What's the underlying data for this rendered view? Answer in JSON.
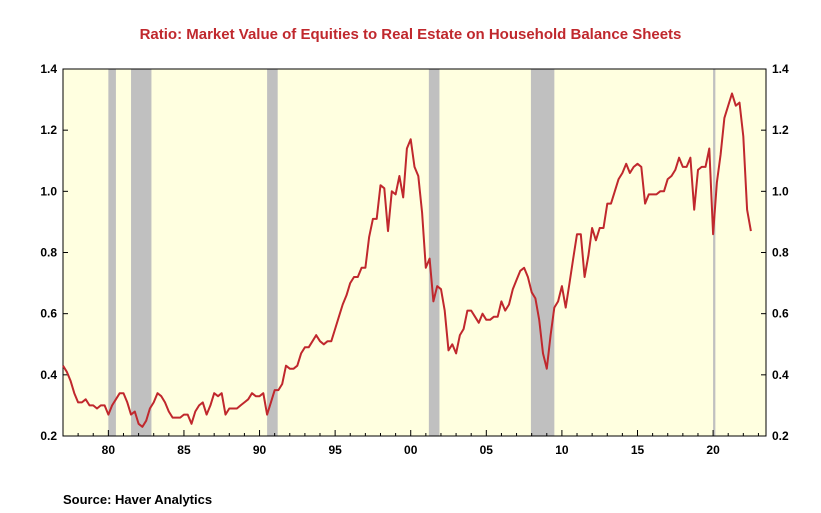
{
  "chart_data": {
    "type": "line",
    "title": "Ratio: Market Value of Equities to Real Estate on Household Balance Sheets",
    "source": "Source:  Haver Analytics",
    "xlabel": "",
    "ylabel": "",
    "xlim": [
      1977.0,
      2023.5
    ],
    "ylim": [
      0.2,
      1.4
    ],
    "y_ticks": [
      0.2,
      0.4,
      0.6,
      0.8,
      1.0,
      1.2,
      1.4
    ],
    "y_tick_labels": [
      "0.2",
      "0.4",
      "0.6",
      "0.8",
      "1.0",
      "1.2",
      "1.4"
    ],
    "x_ticks": [
      1980,
      1985,
      1990,
      1995,
      2000,
      2005,
      2010,
      2015,
      2020
    ],
    "x_tick_labels": [
      "80",
      "85",
      "90",
      "95",
      "00",
      "05",
      "10",
      "15",
      "20"
    ],
    "grid": false,
    "plot_background": "#ffffe0",
    "line_color": "#c0282d",
    "recession_color": "#c0c0c0",
    "recessions": [
      [
        1980.0,
        1980.5
      ],
      [
        1981.5,
        1982.85
      ],
      [
        1990.5,
        1991.2
      ],
      [
        2001.2,
        2001.9
      ],
      [
        2007.95,
        2009.5
      ],
      [
        2020.0,
        2020.15
      ]
    ],
    "series": [
      {
        "values": [
          [
            1977.0,
            0.43
          ],
          [
            1977.25,
            0.41
          ],
          [
            1977.5,
            0.38
          ],
          [
            1977.75,
            0.34
          ],
          [
            1978.0,
            0.31
          ],
          [
            1978.25,
            0.31
          ],
          [
            1978.5,
            0.32
          ],
          [
            1978.75,
            0.3
          ],
          [
            1979.0,
            0.3
          ],
          [
            1979.25,
            0.29
          ],
          [
            1979.5,
            0.3
          ],
          [
            1979.75,
            0.3
          ],
          [
            1980.0,
            0.27
          ],
          [
            1980.25,
            0.3
          ],
          [
            1980.5,
            0.32
          ],
          [
            1980.75,
            0.34
          ],
          [
            1981.0,
            0.34
          ],
          [
            1981.25,
            0.31
          ],
          [
            1981.5,
            0.27
          ],
          [
            1981.75,
            0.28
          ],
          [
            1982.0,
            0.24
          ],
          [
            1982.25,
            0.23
          ],
          [
            1982.5,
            0.25
          ],
          [
            1982.75,
            0.29
          ],
          [
            1983.0,
            0.31
          ],
          [
            1983.25,
            0.34
          ],
          [
            1983.5,
            0.33
          ],
          [
            1983.75,
            0.31
          ],
          [
            1984.0,
            0.28
          ],
          [
            1984.25,
            0.26
          ],
          [
            1984.5,
            0.26
          ],
          [
            1984.75,
            0.26
          ],
          [
            1985.0,
            0.27
          ],
          [
            1985.25,
            0.27
          ],
          [
            1985.5,
            0.24
          ],
          [
            1985.75,
            0.28
          ],
          [
            1986.0,
            0.3
          ],
          [
            1986.25,
            0.31
          ],
          [
            1986.5,
            0.27
          ],
          [
            1986.75,
            0.3
          ],
          [
            1987.0,
            0.34
          ],
          [
            1987.25,
            0.33
          ],
          [
            1987.5,
            0.34
          ],
          [
            1987.75,
            0.27
          ],
          [
            1988.0,
            0.29
          ],
          [
            1988.25,
            0.29
          ],
          [
            1988.5,
            0.29
          ],
          [
            1988.75,
            0.3
          ],
          [
            1989.0,
            0.31
          ],
          [
            1989.25,
            0.32
          ],
          [
            1989.5,
            0.34
          ],
          [
            1989.75,
            0.33
          ],
          [
            1990.0,
            0.33
          ],
          [
            1990.25,
            0.34
          ],
          [
            1990.5,
            0.27
          ],
          [
            1990.75,
            0.31
          ],
          [
            1991.0,
            0.35
          ],
          [
            1991.25,
            0.35
          ],
          [
            1991.5,
            0.37
          ],
          [
            1991.75,
            0.43
          ],
          [
            1992.0,
            0.42
          ],
          [
            1992.25,
            0.42
          ],
          [
            1992.5,
            0.43
          ],
          [
            1992.75,
            0.47
          ],
          [
            1993.0,
            0.49
          ],
          [
            1993.25,
            0.49
          ],
          [
            1993.5,
            0.51
          ],
          [
            1993.75,
            0.53
          ],
          [
            1994.0,
            0.51
          ],
          [
            1994.25,
            0.5
          ],
          [
            1994.5,
            0.51
          ],
          [
            1994.75,
            0.51
          ],
          [
            1995.0,
            0.55
          ],
          [
            1995.25,
            0.59
          ],
          [
            1995.5,
            0.63
          ],
          [
            1995.75,
            0.66
          ],
          [
            1996.0,
            0.7
          ],
          [
            1996.25,
            0.72
          ],
          [
            1996.5,
            0.72
          ],
          [
            1996.75,
            0.75
          ],
          [
            1997.0,
            0.75
          ],
          [
            1997.25,
            0.85
          ],
          [
            1997.5,
            0.91
          ],
          [
            1997.75,
            0.91
          ],
          [
            1998.0,
            1.02
          ],
          [
            1998.25,
            1.01
          ],
          [
            1998.5,
            0.87
          ],
          [
            1998.75,
            1.0
          ],
          [
            1999.0,
            0.99
          ],
          [
            1999.25,
            1.05
          ],
          [
            1999.5,
            0.98
          ],
          [
            1999.75,
            1.14
          ],
          [
            2000.0,
            1.17
          ],
          [
            2000.25,
            1.08
          ],
          [
            2000.5,
            1.05
          ],
          [
            2000.75,
            0.93
          ],
          [
            2001.0,
            0.75
          ],
          [
            2001.25,
            0.78
          ],
          [
            2001.5,
            0.64
          ],
          [
            2001.75,
            0.69
          ],
          [
            2002.0,
            0.68
          ],
          [
            2002.25,
            0.61
          ],
          [
            2002.5,
            0.48
          ],
          [
            2002.75,
            0.5
          ],
          [
            2003.0,
            0.47
          ],
          [
            2003.25,
            0.53
          ],
          [
            2003.5,
            0.55
          ],
          [
            2003.75,
            0.61
          ],
          [
            2004.0,
            0.61
          ],
          [
            2004.25,
            0.59
          ],
          [
            2004.5,
            0.57
          ],
          [
            2004.75,
            0.6
          ],
          [
            2005.0,
            0.58
          ],
          [
            2005.25,
            0.58
          ],
          [
            2005.5,
            0.59
          ],
          [
            2005.75,
            0.59
          ],
          [
            2006.0,
            0.64
          ],
          [
            2006.25,
            0.61
          ],
          [
            2006.5,
            0.63
          ],
          [
            2006.75,
            0.68
          ],
          [
            2007.0,
            0.71
          ],
          [
            2007.25,
            0.74
          ],
          [
            2007.5,
            0.75
          ],
          [
            2007.75,
            0.72
          ],
          [
            2008.0,
            0.67
          ],
          [
            2008.25,
            0.65
          ],
          [
            2008.5,
            0.58
          ],
          [
            2008.75,
            0.47
          ],
          [
            2009.0,
            0.42
          ],
          [
            2009.25,
            0.53
          ],
          [
            2009.5,
            0.62
          ],
          [
            2009.75,
            0.64
          ],
          [
            2010.0,
            0.69
          ],
          [
            2010.25,
            0.62
          ],
          [
            2010.5,
            0.7
          ],
          [
            2010.75,
            0.78
          ],
          [
            2011.0,
            0.86
          ],
          [
            2011.25,
            0.86
          ],
          [
            2011.5,
            0.72
          ],
          [
            2011.75,
            0.79
          ],
          [
            2012.0,
            0.88
          ],
          [
            2012.25,
            0.84
          ],
          [
            2012.5,
            0.88
          ],
          [
            2012.75,
            0.88
          ],
          [
            2013.0,
            0.96
          ],
          [
            2013.25,
            0.96
          ],
          [
            2013.5,
            1.0
          ],
          [
            2013.75,
            1.04
          ],
          [
            2014.0,
            1.06
          ],
          [
            2014.25,
            1.09
          ],
          [
            2014.5,
            1.06
          ],
          [
            2014.75,
            1.08
          ],
          [
            2015.0,
            1.09
          ],
          [
            2015.25,
            1.08
          ],
          [
            2015.5,
            0.96
          ],
          [
            2015.75,
            0.99
          ],
          [
            2016.0,
            0.99
          ],
          [
            2016.25,
            0.99
          ],
          [
            2016.5,
            1.0
          ],
          [
            2016.75,
            1.0
          ],
          [
            2017.0,
            1.04
          ],
          [
            2017.25,
            1.05
          ],
          [
            2017.5,
            1.07
          ],
          [
            2017.75,
            1.11
          ],
          [
            2018.0,
            1.08
          ],
          [
            2018.25,
            1.08
          ],
          [
            2018.5,
            1.11
          ],
          [
            2018.75,
            0.94
          ],
          [
            2019.0,
            1.07
          ],
          [
            2019.25,
            1.08
          ],
          [
            2019.5,
            1.08
          ],
          [
            2019.75,
            1.14
          ],
          [
            2020.0,
            0.86
          ],
          [
            2020.25,
            1.03
          ],
          [
            2020.5,
            1.12
          ],
          [
            2020.75,
            1.24
          ],
          [
            2021.0,
            1.28
          ],
          [
            2021.25,
            1.32
          ],
          [
            2021.5,
            1.28
          ],
          [
            2021.75,
            1.29
          ],
          [
            2022.0,
            1.18
          ],
          [
            2022.25,
            0.94
          ],
          [
            2022.5,
            0.87
          ]
        ]
      }
    ]
  }
}
